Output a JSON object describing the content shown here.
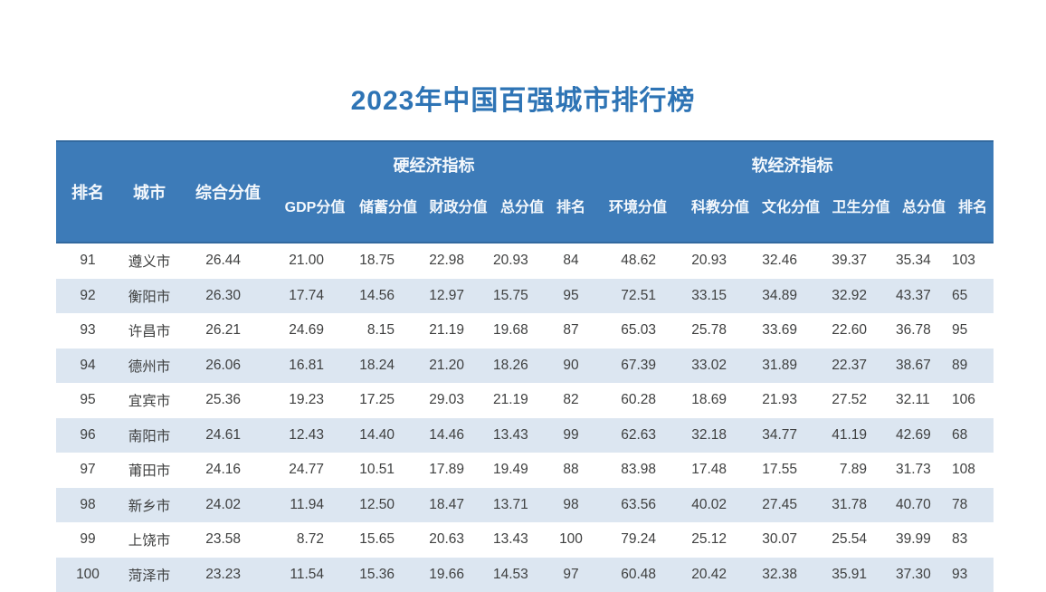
{
  "page": {
    "title": "2023年中国百强城市排行榜"
  },
  "colors": {
    "accent": "#2e74b5",
    "header_bg": "#3d7bb8",
    "header_edge": "#32699f",
    "alt_row_bg": "#dce6f1",
    "text": "#3f4040"
  },
  "table": {
    "columns": {
      "rank": "排名",
      "city": "城市",
      "composite": "综合分值",
      "hard_group": "硬经济指标",
      "soft_group": "软经济指标",
      "hard": [
        "GDP分值",
        "储蓄分值",
        "财政分值",
        "总分值",
        "排名"
      ],
      "soft": [
        "环境分值",
        "科教分值",
        "文化分值",
        "卫生分值",
        "总分值",
        "排名"
      ]
    },
    "rows": [
      {
        "rank": "91",
        "city": "遵义市",
        "composite": "26.44",
        "hard": [
          "21.00",
          "18.75",
          "22.98",
          "20.93",
          "84"
        ],
        "soft": [
          "48.62",
          "20.93",
          "32.46",
          "39.37",
          "35.34",
          "103"
        ]
      },
      {
        "rank": "92",
        "city": "衡阳市",
        "composite": "26.30",
        "hard": [
          "17.74",
          "14.56",
          "12.97",
          "15.75",
          "95"
        ],
        "soft": [
          "72.51",
          "33.15",
          "34.89",
          "32.92",
          "43.37",
          "65"
        ]
      },
      {
        "rank": "93",
        "city": "许昌市",
        "composite": "26.21",
        "hard": [
          "24.69",
          "8.15",
          "21.19",
          "19.68",
          "87"
        ],
        "soft": [
          "65.03",
          "25.78",
          "33.69",
          "22.60",
          "36.78",
          "95"
        ]
      },
      {
        "rank": "94",
        "city": "德州市",
        "composite": "26.06",
        "hard": [
          "16.81",
          "18.24",
          "21.20",
          "18.26",
          "90"
        ],
        "soft": [
          "67.39",
          "33.02",
          "31.89",
          "22.37",
          "38.67",
          "89"
        ]
      },
      {
        "rank": "95",
        "city": "宜宾市",
        "composite": "25.36",
        "hard": [
          "19.23",
          "17.25",
          "29.03",
          "21.19",
          "82"
        ],
        "soft": [
          "60.28",
          "18.69",
          "21.93",
          "27.52",
          "32.11",
          "106"
        ]
      },
      {
        "rank": "96",
        "city": "南阳市",
        "composite": "24.61",
        "hard": [
          "12.43",
          "14.40",
          "14.46",
          "13.43",
          "99"
        ],
        "soft": [
          "62.63",
          "32.18",
          "34.77",
          "41.19",
          "42.69",
          "68"
        ]
      },
      {
        "rank": "97",
        "city": "莆田市",
        "composite": "24.16",
        "hard": [
          "24.77",
          "10.51",
          "17.89",
          "19.49",
          "88"
        ],
        "soft": [
          "83.98",
          "17.48",
          "17.55",
          "7.89",
          "31.73",
          "108"
        ]
      },
      {
        "rank": "98",
        "city": "新乡市",
        "composite": "24.02",
        "hard": [
          "11.94",
          "12.50",
          "18.47",
          "13.71",
          "98"
        ],
        "soft": [
          "63.56",
          "40.02",
          "27.45",
          "31.78",
          "40.70",
          "78"
        ]
      },
      {
        "rank": "99",
        "city": "上饶市",
        "composite": "23.58",
        "hard": [
          "8.72",
          "15.65",
          "20.63",
          "13.43",
          "100"
        ],
        "soft": [
          "79.24",
          "25.12",
          "30.07",
          "25.54",
          "39.99",
          "83"
        ]
      },
      {
        "rank": "100",
        "city": "菏泽市",
        "composite": "23.23",
        "hard": [
          "11.54",
          "15.36",
          "19.66",
          "14.53",
          "97"
        ],
        "soft": [
          "60.48",
          "20.42",
          "32.38",
          "35.91",
          "37.30",
          "93"
        ]
      }
    ]
  }
}
